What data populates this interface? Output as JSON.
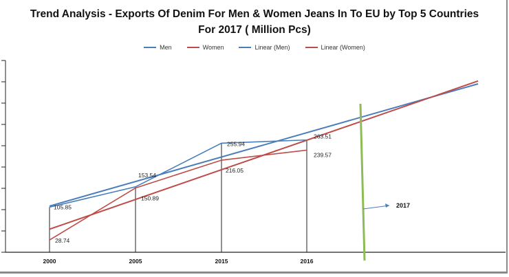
{
  "chart_data": {
    "type": "line",
    "title_line1": "Trend Analysis - Exports Of Denim For Men & Women Jeans In To EU by Top 5 Countries",
    "title_line2": "For 2017  ( Million Pcs)",
    "categories": [
      "2000",
      "2005",
      "2015",
      "2016"
    ],
    "series": [
      {
        "name": "Men",
        "values": [
          105.85,
          153.54,
          255.94,
          263.51
        ],
        "color": "#4a7ebb",
        "labels": [
          "105.85",
          "153.54",
          "255.94",
          "263.51"
        ]
      },
      {
        "name": "Women",
        "values": [
          28.74,
          150.89,
          216.05,
          239.57
        ],
        "color": "#be4b48",
        "labels": [
          "28.74",
          "150.89",
          "216.05",
          "239.57"
        ]
      }
    ],
    "trendlines": [
      {
        "name": "Linear (Men)",
        "color": "#4a7ebb"
      },
      {
        "name": "Linear (Women)",
        "color": "#be4b48"
      }
    ],
    "annotation": {
      "text": "2017",
      "marker_color": "#8dbb55"
    },
    "ylim": [
      0,
      450
    ],
    "legend_position": "top",
    "grid": false
  }
}
